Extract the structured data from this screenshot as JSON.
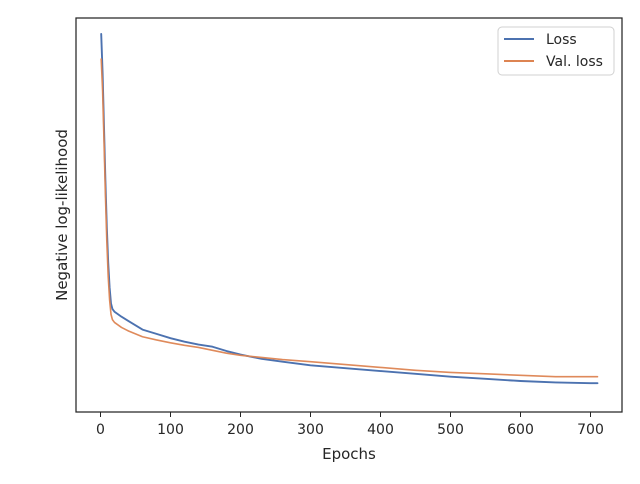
{
  "chart_data": {
    "type": "line",
    "title": "",
    "xlabel": "Epochs",
    "ylabel": "Negative log-likelihood",
    "xlim": [
      -35,
      745
    ],
    "ylim": [
      0,
      1
    ],
    "xticks": [
      0,
      100,
      200,
      300,
      400,
      500,
      600,
      700
    ],
    "yticks_labeled": false,
    "grid": false,
    "legend_position": "top-right",
    "series": [
      {
        "name": "Loss",
        "color": "#4c72b0",
        "x": [
          1,
          3,
          5,
          7,
          9,
          11,
          13,
          15,
          17,
          20,
          25,
          30,
          40,
          50,
          60,
          80,
          100,
          120,
          140,
          160,
          180,
          200,
          230,
          260,
          300,
          350,
          400,
          450,
          500,
          550,
          600,
          650,
          700,
          710
        ],
        "y": [
          1.0,
          0.89,
          0.74,
          0.59,
          0.46,
          0.36,
          0.29,
          0.245,
          0.23,
          0.222,
          0.215,
          0.208,
          0.196,
          0.184,
          0.172,
          0.16,
          0.148,
          0.138,
          0.13,
          0.124,
          0.112,
          0.102,
          0.09,
          0.082,
          0.072,
          0.064,
          0.056,
          0.048,
          0.04,
          0.034,
          0.028,
          0.024,
          0.022,
          0.022
        ]
      },
      {
        "name": "Val. loss",
        "color": "#dd8452",
        "x": [
          1,
          3,
          5,
          7,
          9,
          11,
          13,
          15,
          17,
          20,
          25,
          30,
          40,
          50,
          60,
          80,
          100,
          120,
          140,
          160,
          180,
          200,
          230,
          260,
          300,
          350,
          400,
          450,
          500,
          550,
          600,
          650,
          700,
          710
        ],
        "y": [
          0.93,
          0.84,
          0.7,
          0.55,
          0.42,
          0.32,
          0.255,
          0.215,
          0.2,
          0.192,
          0.185,
          0.178,
          0.168,
          0.16,
          0.152,
          0.143,
          0.135,
          0.128,
          0.122,
          0.114,
          0.106,
          0.1,
          0.094,
          0.088,
          0.082,
          0.074,
          0.066,
          0.058,
          0.052,
          0.048,
          0.044,
          0.04,
          0.04,
          0.04
        ]
      }
    ]
  }
}
